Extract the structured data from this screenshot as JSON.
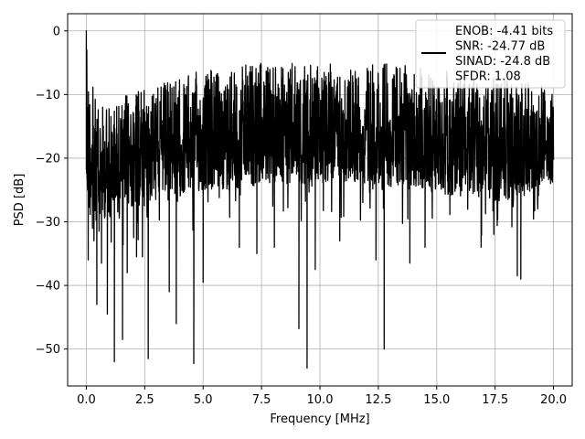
{
  "chart_data": {
    "type": "line",
    "title": "",
    "xlabel": "Frequency [MHz]",
    "ylabel": "PSD [dB]",
    "xlim": [
      -0.8,
      20.8
    ],
    "ylim": [
      -55.8,
      2.7
    ],
    "xticks": [
      0.0,
      2.5,
      5.0,
      7.5,
      10.0,
      12.5,
      15.0,
      17.5,
      20.0
    ],
    "xtick_labels": [
      "0.0",
      "2.5",
      "5.0",
      "7.5",
      "10.0",
      "12.5",
      "15.0",
      "17.5",
      "20.0"
    ],
    "yticks": [
      0,
      -10,
      -20,
      -30,
      -40,
      -50
    ],
    "ytick_labels": [
      "0",
      "−10",
      "−20",
      "−30",
      "−40",
      "−50"
    ],
    "grid": true,
    "legend_position": "top-right",
    "line_color": "#000000",
    "series": [
      {
        "name": "ENOB: -4.41 bits\nSNR: -24.77 dB\nSINAD: -24.8 dB\nSFDR: 1.08",
        "noise_band_top": [
          [
            0.0,
            -4
          ],
          [
            0.5,
            -12
          ],
          [
            1.0,
            -11
          ],
          [
            2.0,
            -9
          ],
          [
            3.0,
            -8
          ],
          [
            4.0,
            -7
          ],
          [
            5.0,
            -6
          ],
          [
            6.0,
            -6
          ],
          [
            7.0,
            -5
          ],
          [
            10.0,
            -5
          ],
          [
            13.0,
            -5
          ],
          [
            15.0,
            -6
          ],
          [
            17.0,
            -7
          ],
          [
            19.0,
            -8
          ],
          [
            20.0,
            -9
          ]
        ],
        "noise_band_bottom": [
          [
            0.0,
            -29
          ],
          [
            0.5,
            -30
          ],
          [
            2.0,
            -28
          ],
          [
            4.0,
            -26
          ],
          [
            6.0,
            -25
          ],
          [
            8.0,
            -24
          ],
          [
            10.0,
            -24
          ],
          [
            12.0,
            -24
          ],
          [
            14.0,
            -25
          ],
          [
            16.0,
            -26
          ],
          [
            18.0,
            -27
          ],
          [
            20.0,
            -24
          ]
        ],
        "peaks": [
          [
            0.0,
            0.0
          ],
          [
            0.02,
            -3
          ]
        ],
        "dips": [
          [
            0.08,
            -36
          ],
          [
            0.45,
            -43
          ],
          [
            0.65,
            -36.5
          ],
          [
            0.9,
            -44.5
          ],
          [
            1.2,
            -52
          ],
          [
            1.55,
            -48.5
          ],
          [
            1.75,
            -38
          ],
          [
            2.15,
            -35.5
          ],
          [
            2.4,
            -35.5
          ],
          [
            2.65,
            -51.5
          ],
          [
            3.55,
            -41
          ],
          [
            3.85,
            -46
          ],
          [
            4.6,
            -52.3
          ],
          [
            5.0,
            -39.5
          ],
          [
            6.55,
            -34
          ],
          [
            7.3,
            -35
          ],
          [
            8.05,
            -34
          ],
          [
            9.1,
            -46.8
          ],
          [
            9.45,
            -53
          ],
          [
            9.8,
            -37.5
          ],
          [
            10.85,
            -33
          ],
          [
            12.4,
            -36
          ],
          [
            12.75,
            -50
          ],
          [
            13.85,
            -36.5
          ],
          [
            14.5,
            -34
          ],
          [
            16.9,
            -34
          ],
          [
            18.45,
            -38.5
          ],
          [
            18.6,
            -39
          ]
        ]
      }
    ]
  }
}
